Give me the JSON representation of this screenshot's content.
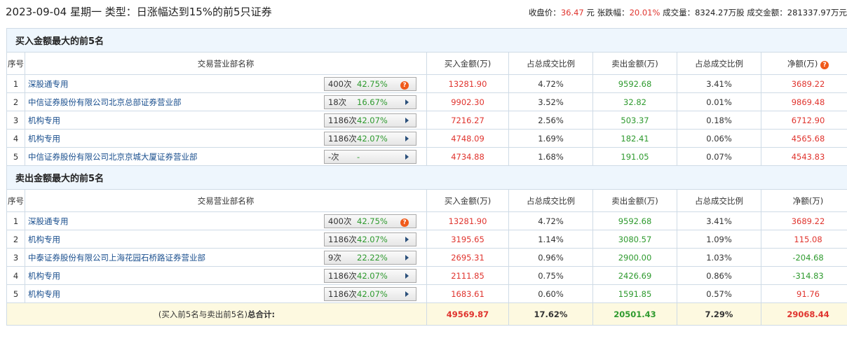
{
  "header": {
    "title": "2023-09-04 星期一 类型：日涨幅达到15%的前5只证券",
    "close_label": "收盘价：",
    "close_value": "36.47",
    "close_unit": " 元 ",
    "change_label": "张跌幅：",
    "change_value": "20.01%",
    "volume_label": " 成交量：",
    "volume_value": "8324.27万股",
    "amount_label": " 成交金额：",
    "amount_value": "281337.97万元"
  },
  "columns": [
    "序号",
    "交易营业部名称",
    "买入金额(万)",
    "占总成交比例",
    "卖出金额(万)",
    "占总成交比例",
    "净额(万)"
  ],
  "colors": {
    "up": "#e0342e",
    "down": "#2e9a2e",
    "link": "#1a4f8e"
  },
  "buy_section": {
    "title": "买入金额最大的前5名",
    "rows": [
      {
        "no": "1",
        "name": "深股通专用",
        "count": "400次",
        "rate": "42.75%",
        "icon": "help-icon",
        "buy": "13281.90",
        "buy_pct": "4.72%",
        "sell": "9592.68",
        "sell_pct": "3.41%",
        "net": "3689.22"
      },
      {
        "no": "2",
        "name": "中信证券股份有限公司北京总部证券营业部",
        "count": "18次",
        "rate": "16.67%",
        "icon": "arrow-right-icon",
        "buy": "9902.30",
        "buy_pct": "3.52%",
        "sell": "32.82",
        "sell_pct": "0.01%",
        "net": "9869.48"
      },
      {
        "no": "3",
        "name": "机构专用",
        "count": "1186次",
        "rate": "42.07%",
        "icon": "arrow-right-icon",
        "buy": "7216.27",
        "buy_pct": "2.56%",
        "sell": "503.37",
        "sell_pct": "0.18%",
        "net": "6712.90"
      },
      {
        "no": "4",
        "name": "机构专用",
        "count": "1186次",
        "rate": "42.07%",
        "icon": "arrow-right-icon",
        "buy": "4748.09",
        "buy_pct": "1.69%",
        "sell": "182.41",
        "sell_pct": "0.06%",
        "net": "4565.68"
      },
      {
        "no": "5",
        "name": "中信证券股份有限公司北京京城大厦证券营业部",
        "count": "-次",
        "rate": "-",
        "icon": "arrow-right-icon",
        "buy": "4734.88",
        "buy_pct": "1.68%",
        "sell": "191.05",
        "sell_pct": "0.07%",
        "net": "4543.83"
      }
    ]
  },
  "sell_section": {
    "title": "卖出金额最大的前5名",
    "rows": [
      {
        "no": "1",
        "name": "深股通专用",
        "count": "400次",
        "rate": "42.75%",
        "icon": "help-icon",
        "buy": "13281.90",
        "buy_pct": "4.72%",
        "sell": "9592.68",
        "sell_pct": "3.41%",
        "net": "3689.22"
      },
      {
        "no": "2",
        "name": "机构专用",
        "count": "1186次",
        "rate": "42.07%",
        "icon": "arrow-right-icon",
        "buy": "3195.65",
        "buy_pct": "1.14%",
        "sell": "3080.57",
        "sell_pct": "1.09%",
        "net": "115.08"
      },
      {
        "no": "3",
        "name": "中泰证券股份有限公司上海花园石桥路证券营业部",
        "count": "9次",
        "rate": "22.22%",
        "icon": "arrow-right-icon",
        "buy": "2695.31",
        "buy_pct": "0.96%",
        "sell": "2900.00",
        "sell_pct": "1.03%",
        "net": "-204.68"
      },
      {
        "no": "4",
        "name": "机构专用",
        "count": "1186次",
        "rate": "42.07%",
        "icon": "arrow-right-icon",
        "buy": "2111.85",
        "buy_pct": "0.75%",
        "sell": "2426.69",
        "sell_pct": "0.86%",
        "net": "-314.83"
      },
      {
        "no": "5",
        "name": "机构专用",
        "count": "1186次",
        "rate": "42.07%",
        "icon": "arrow-right-icon",
        "buy": "1683.61",
        "buy_pct": "0.60%",
        "sell": "1591.85",
        "sell_pct": "0.57%",
        "net": "91.76"
      }
    ]
  },
  "total": {
    "label_pre": "(买入前5名与卖出前5名)",
    "label_bold": "总合计:",
    "buy": "49569.87",
    "buy_pct": "17.62%",
    "sell": "20501.43",
    "sell_pct": "7.29%",
    "net": "29068.44"
  }
}
